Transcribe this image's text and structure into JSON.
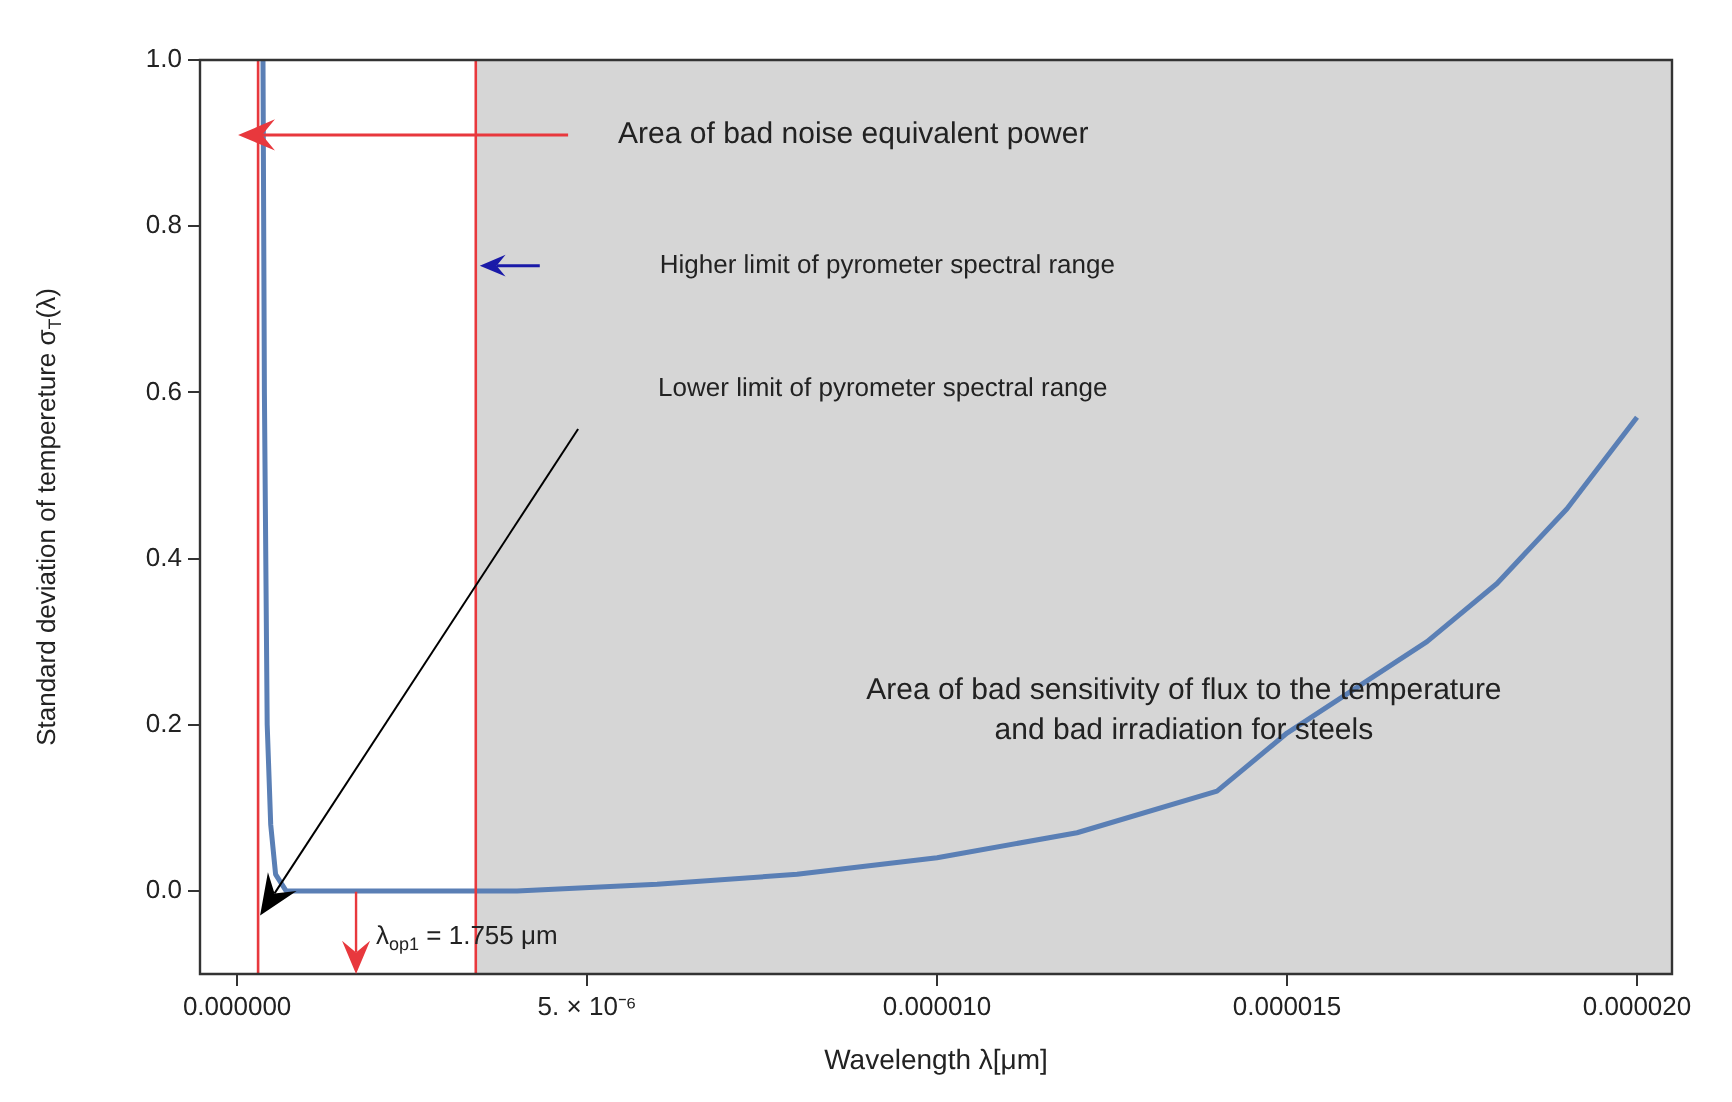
{
  "chart_data": {
    "type": "line",
    "xlabel": "Wavelength λ[μm]",
    "ylabel": "Standard deviation of tempereture σ$_{T}$(λ)",
    "xlim": [
      -5.3e-07,
      2.05e-05
    ],
    "ylim": [
      -0.1,
      1.0
    ],
    "xticks": [
      {
        "value": 0,
        "label": "0.000000"
      },
      {
        "value": 5e-06,
        "label": "5. × 10⁻⁶"
      },
      {
        "value": 1e-05,
        "label": "0.000010"
      },
      {
        "value": 1.5e-05,
        "label": "0.000015"
      },
      {
        "value": 2e-05,
        "label": "0.000020"
      }
    ],
    "yticks": [
      {
        "value": 0,
        "label": "0.0"
      },
      {
        "value": 0.2,
        "label": "0.2"
      },
      {
        "value": 0.4,
        "label": "0.4"
      },
      {
        "value": 0.6,
        "label": "0.6"
      },
      {
        "value": 0.8,
        "label": "0.8"
      },
      {
        "value": 1.0,
        "label": "1.0"
      }
    ],
    "series": [
      {
        "color": "#5a7fb5",
        "x": [
          3.7e-07,
          3.9e-07,
          4.3e-07,
          4.8e-07,
          5.5e-07,
          7e-07,
          2e-06,
          4e-06,
          6e-06,
          8e-06,
          1e-05,
          1.2e-05,
          1.4e-05,
          1.5e-05,
          1.6e-05,
          1.7e-05,
          1.8e-05,
          1.9e-05,
          2e-05
        ],
        "values": [
          1.0,
          0.6,
          0.2,
          0.08,
          0.02,
          0.0,
          0.0,
          0.0,
          0.008,
          0.02,
          0.04,
          0.07,
          0.12,
          0.19,
          0.245,
          0.3,
          0.37,
          0.46,
          0.57
        ]
      }
    ],
    "ref_lines": [
      {
        "axis": "x",
        "value": 3e-07,
        "color": "#e8383d"
      },
      {
        "axis": "x",
        "value": 3.41e-06,
        "color": "#e8383d"
      }
    ],
    "bands": [
      {
        "axis": "x",
        "from": 3.41e-06,
        "to": 2.05e-05,
        "label": "Area of bad sensitivity of flux to the temperature\nand bad irradiation for steels",
        "color": "#d6d6d6"
      }
    ],
    "annotations": [
      "Area of bad noise equivalent power",
      "Higher limit of pyrometer spectral range",
      "Lower limit of pyrometer spectral range",
      "λ$_{op1}$ = 1.755 μm"
    ],
    "grid": false,
    "legend": false,
    "marker": "none",
    "line_style": "solid"
  }
}
